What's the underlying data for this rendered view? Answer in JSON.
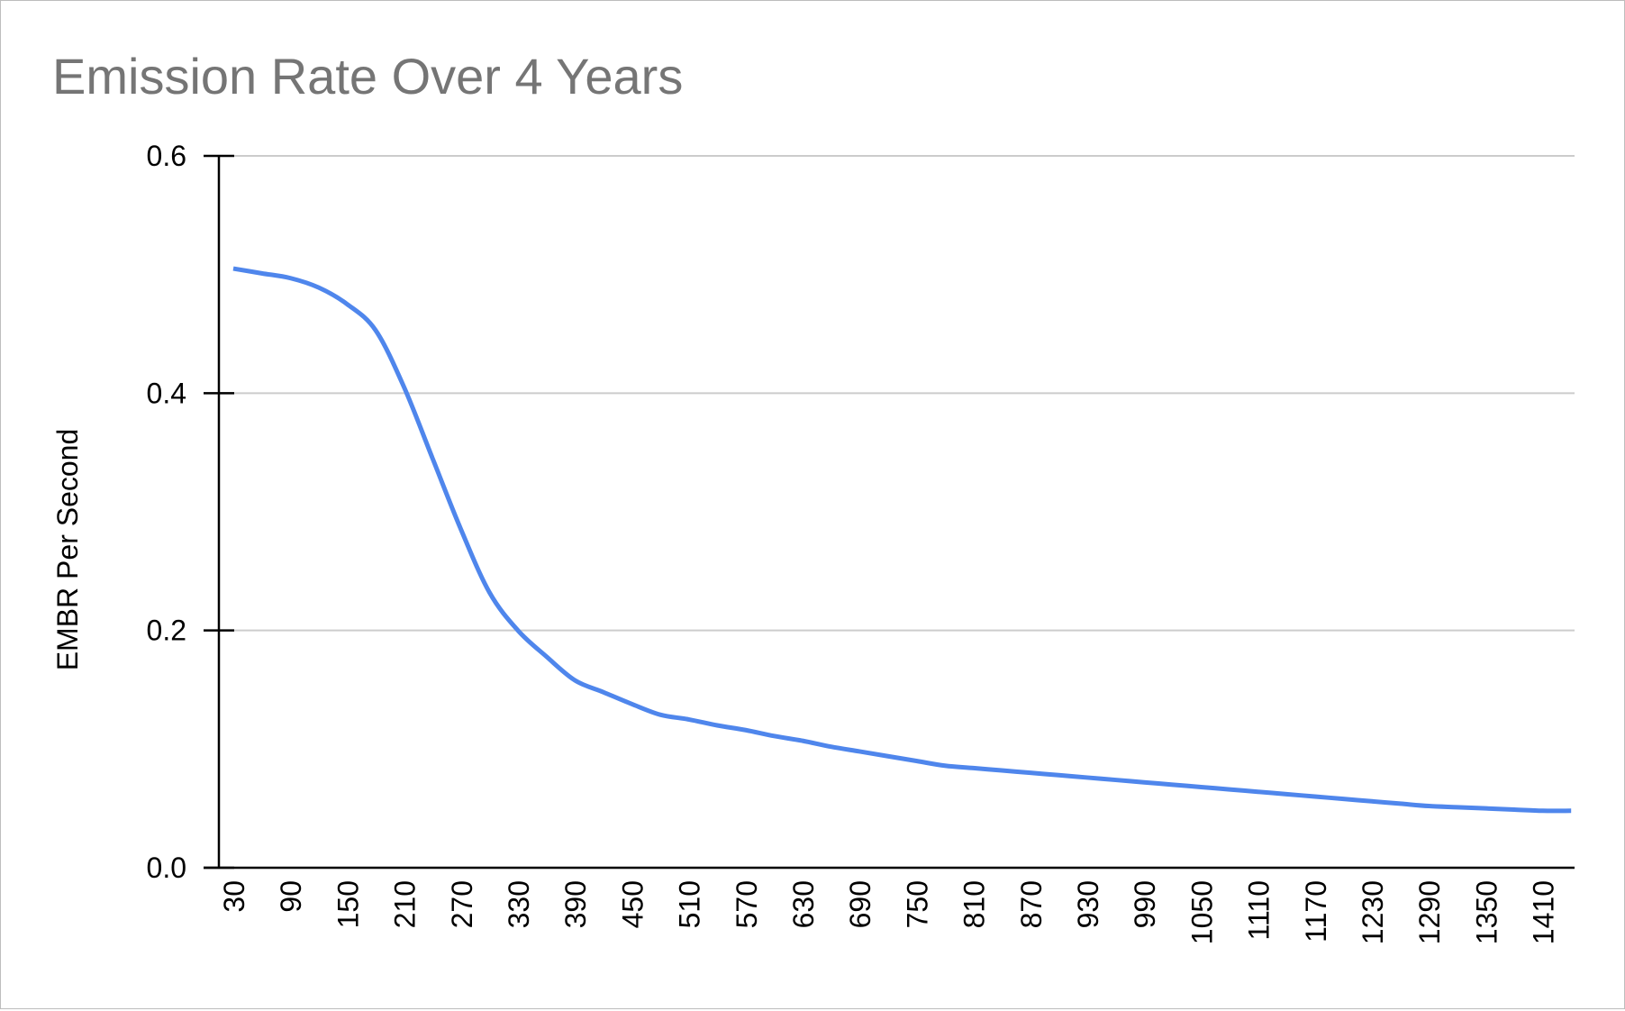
{
  "chart_data": {
    "type": "line",
    "title": "Emission Rate Over 4 Years",
    "xlabel": "",
    "ylabel": "EMBR Per Second",
    "ylim": [
      0,
      0.6
    ],
    "y_ticks": [
      "0.0",
      "0.2",
      "0.4",
      "0.6"
    ],
    "x_tick_labels": [
      "30",
      "90",
      "150",
      "210",
      "270",
      "330",
      "390",
      "450",
      "510",
      "570",
      "630",
      "690",
      "750",
      "810",
      "870",
      "930",
      "990",
      "1050",
      "1110",
      "1170",
      "1230",
      "1290",
      "1350",
      "1410"
    ],
    "grid": true,
    "legend": "none",
    "colors": {
      "line": "#4f86ec",
      "grid": "#cccccc",
      "axis": "#000000",
      "title": "#757575"
    },
    "series": [
      {
        "x": [
          30,
          60,
          90,
          120,
          150,
          180,
          210,
          240,
          270,
          300,
          330,
          360,
          390,
          420,
          450,
          480,
          510,
          540,
          570,
          600,
          630,
          660,
          690,
          720,
          750,
          780,
          810,
          840,
          870,
          900,
          930,
          960,
          990,
          1020,
          1050,
          1080,
          1110,
          1140,
          1170,
          1200,
          1230,
          1260,
          1290,
          1320,
          1350,
          1380,
          1410,
          1440
        ],
        "y": [
          0.505,
          0.501,
          0.497,
          0.489,
          0.475,
          0.453,
          0.405,
          0.345,
          0.285,
          0.232,
          0.2,
          0.178,
          0.158,
          0.148,
          0.138,
          0.129,
          0.125,
          0.12,
          0.116,
          0.111,
          0.107,
          0.102,
          0.098,
          0.094,
          0.09,
          0.086,
          0.084,
          0.082,
          0.08,
          0.078,
          0.076,
          0.074,
          0.072,
          0.07,
          0.068,
          0.066,
          0.064,
          0.062,
          0.06,
          0.058,
          0.056,
          0.054,
          0.052,
          0.051,
          0.05,
          0.049,
          0.048,
          0.048
        ]
      }
    ]
  }
}
